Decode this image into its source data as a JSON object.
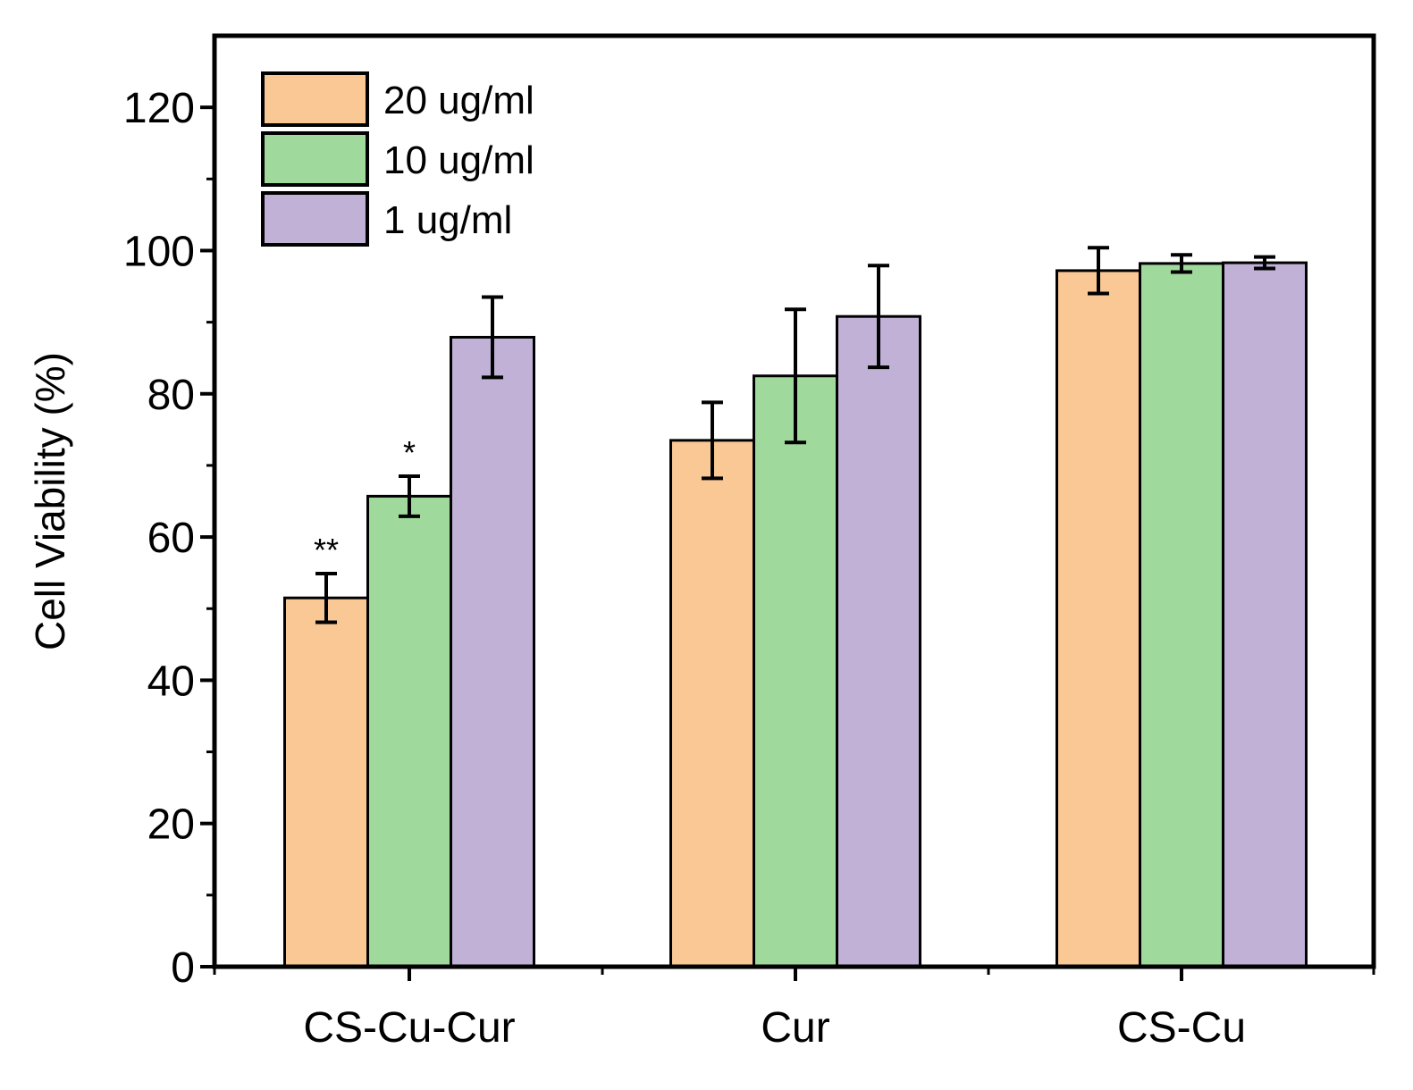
{
  "chart_data": {
    "type": "bar",
    "title": "",
    "xlabel": "",
    "ylabel": "Cell Viability (%)",
    "ylim": [
      0,
      130
    ],
    "yticks": [
      0,
      20,
      40,
      60,
      80,
      100,
      120
    ],
    "categories": [
      "CS-Cu-Cur",
      "Cur",
      "CS-Cu"
    ],
    "series": [
      {
        "name": "20 ug/ml",
        "color": "#F9C895",
        "values": [
          51.5,
          73.5,
          97.2
        ],
        "errors": [
          3.4,
          5.3,
          3.2
        ]
      },
      {
        "name": "10 ug/ml",
        "color": "#A0D99C",
        "values": [
          65.7,
          82.5,
          98.2
        ],
        "errors": [
          2.8,
          9.3,
          1.2
        ]
      },
      {
        "name": "1 ug/ml",
        "color": "#C2B1D7",
        "values": [
          87.9,
          90.8,
          98.3
        ],
        "errors": [
          5.6,
          7.1,
          0.8
        ]
      }
    ],
    "annotations": [
      {
        "category": "CS-Cu-Cur",
        "series": "20 ug/ml",
        "text": "**"
      },
      {
        "category": "CS-Cu-Cur",
        "series": "10 ug/ml",
        "text": "*"
      }
    ],
    "legend": "top-left",
    "grid": false
  }
}
